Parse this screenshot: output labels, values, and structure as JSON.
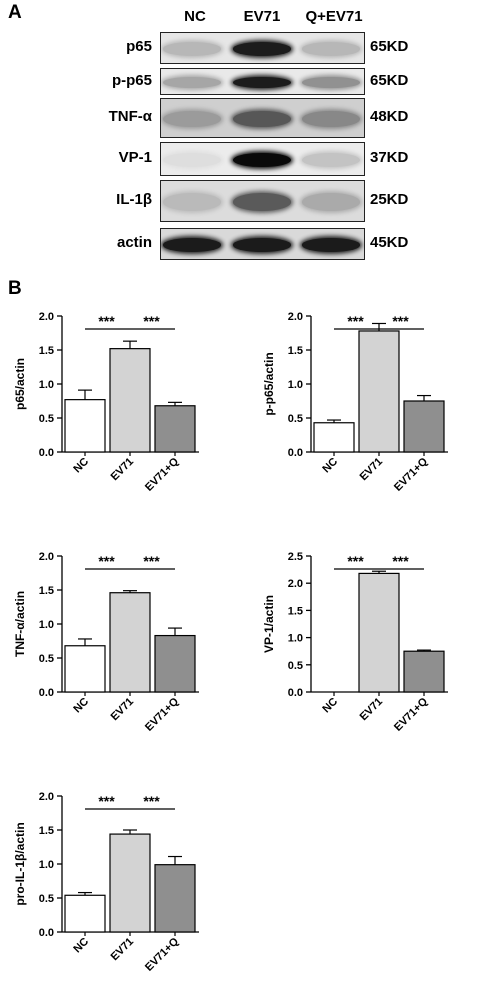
{
  "panel_a": {
    "letter": "A",
    "lanes": [
      "NC",
      "EV71",
      "Q+EV71"
    ],
    "blots": [
      {
        "protein": "p65",
        "kd": "65KD",
        "bg": "#e6e6e6",
        "intensity": [
          0.35,
          0.95,
          0.35
        ]
      },
      {
        "protein": "p-p65",
        "kd": "65KD",
        "bg": "#e9e9e9",
        "intensity": [
          0.45,
          0.95,
          0.55
        ]
      },
      {
        "protein": "TNF-α",
        "kd": "48KD",
        "bg": "#cfcfcf",
        "intensity": [
          0.45,
          0.75,
          0.55
        ]
      },
      {
        "protein": "VP-1",
        "kd": "37KD",
        "bg": "#ececec",
        "intensity": [
          0.08,
          1.0,
          0.3
        ]
      },
      {
        "protein": "IL-1β",
        "kd": "25KD",
        "bg": "#dcdcdc",
        "intensity": [
          0.3,
          0.75,
          0.4
        ]
      },
      {
        "protein": "actin",
        "kd": "45KD",
        "bg": "#d9d9d9",
        "intensity": [
          0.95,
          0.95,
          0.95
        ]
      }
    ]
  },
  "panel_b": {
    "letter": "B"
  },
  "chart_data": [
    {
      "type": "bar",
      "categories": [
        "NC",
        "EV71",
        "EV71+Q"
      ],
      "values": [
        0.77,
        1.52,
        0.68
      ],
      "errors": [
        0.14,
        0.11,
        0.05
      ],
      "ylabel": "p65/actin",
      "ylim": [
        0,
        2.0
      ],
      "yticks": [
        "0.0",
        "0.5",
        "1.0",
        "1.5",
        "2.0"
      ],
      "significance": [
        {
          "from": 0,
          "to": 1,
          "label": "***"
        },
        {
          "from": 1,
          "to": 2,
          "label": "***"
        }
      ],
      "bar_colors": [
        "#ffffff",
        "#d3d3d3",
        "#8f8f8f"
      ]
    },
    {
      "type": "bar",
      "categories": [
        "NC",
        "EV71",
        "EV71+Q"
      ],
      "values": [
        0.43,
        1.78,
        0.75
      ],
      "errors": [
        0.04,
        0.11,
        0.08
      ],
      "ylabel": "p-p65/actin",
      "ylim": [
        0,
        2.0
      ],
      "yticks": [
        "0.0",
        "0.5",
        "1.0",
        "1.5",
        "2.0"
      ],
      "significance": [
        {
          "from": 0,
          "to": 1,
          "label": "***"
        },
        {
          "from": 1,
          "to": 2,
          "label": "***"
        }
      ],
      "bar_colors": [
        "#ffffff",
        "#d3d3d3",
        "#8f8f8f"
      ]
    },
    {
      "type": "bar",
      "categories": [
        "NC",
        "EV71",
        "EV71+Q"
      ],
      "values": [
        0.68,
        1.46,
        0.83
      ],
      "errors": [
        0.1,
        0.03,
        0.11
      ],
      "ylabel": "TNF-α/actin",
      "ylim": [
        0,
        2.0
      ],
      "yticks": [
        "0.0",
        "0.5",
        "1.0",
        "1.5",
        "2.0"
      ],
      "significance": [
        {
          "from": 0,
          "to": 1,
          "label": "***"
        },
        {
          "from": 1,
          "to": 2,
          "label": "***"
        }
      ],
      "bar_colors": [
        "#ffffff",
        "#d3d3d3",
        "#8f8f8f"
      ]
    },
    {
      "type": "bar",
      "categories": [
        "NC",
        "EV71",
        "EV71+Q"
      ],
      "values": [
        0.0,
        2.18,
        0.75
      ],
      "errors": [
        0.0,
        0.04,
        0.02
      ],
      "ylabel": "VP-1/actin",
      "ylim": [
        0,
        2.5
      ],
      "yticks": [
        "0.0",
        "0.5",
        "1.0",
        "1.5",
        "2.0",
        "2.5"
      ],
      "significance": [
        {
          "from": 0,
          "to": 1,
          "label": "***"
        },
        {
          "from": 1,
          "to": 2,
          "label": "***"
        }
      ],
      "bar_colors": [
        "#ffffff",
        "#d3d3d3",
        "#8f8f8f"
      ]
    },
    {
      "type": "bar",
      "categories": [
        "NC",
        "EV71",
        "EV71+Q"
      ],
      "values": [
        0.54,
        1.44,
        0.99
      ],
      "errors": [
        0.04,
        0.06,
        0.12
      ],
      "ylabel": "pro-IL-1β/actin",
      "ylim": [
        0,
        2.0
      ],
      "yticks": [
        "0.0",
        "0.5",
        "1.0",
        "1.5",
        "2.0"
      ],
      "significance": [
        {
          "from": 0,
          "to": 1,
          "label": "***"
        },
        {
          "from": 1,
          "to": 2,
          "label": "***"
        }
      ],
      "bar_colors": [
        "#ffffff",
        "#d3d3d3",
        "#8f8f8f"
      ]
    }
  ]
}
